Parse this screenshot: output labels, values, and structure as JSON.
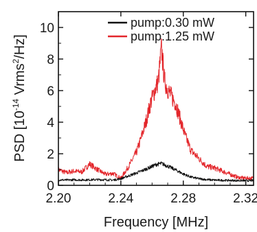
{
  "chart_data": {
    "type": "line",
    "xlabel": "Frequency [MHz]",
    "ylabel": {
      "prefix": "PSD  [10",
      "exp1": "-14",
      "middle": " Vrms",
      "exp2": "2",
      "suffix": "/Hz]"
    },
    "xlim": [
      2.2,
      2.325
    ],
    "ylim": [
      0,
      11
    ],
    "xticks": [
      2.2,
      2.24,
      2.28,
      2.32
    ],
    "xtick_labels": [
      "2.20",
      "2.24",
      "2.28",
      "2.32"
    ],
    "yticks": [
      0,
      2,
      4,
      6,
      8,
      10
    ],
    "ytick_labels": [
      "0",
      "2",
      "4",
      "6",
      "8",
      "10"
    ],
    "legend_position": "top-right",
    "grid": false,
    "series": [
      {
        "name": "pump:0.30 mW",
        "color": "#111111",
        "x": [
          2.2,
          2.205,
          2.21,
          2.215,
          2.22,
          2.225,
          2.23,
          2.235,
          2.24,
          2.245,
          2.25,
          2.255,
          2.26,
          2.263,
          2.266,
          2.27,
          2.275,
          2.28,
          2.285,
          2.29,
          2.295,
          2.3,
          2.305,
          2.31,
          2.315,
          2.32,
          2.325
        ],
        "y": [
          0.35,
          0.33,
          0.35,
          0.34,
          0.35,
          0.36,
          0.35,
          0.33,
          0.42,
          0.6,
          0.78,
          0.98,
          1.2,
          1.33,
          1.38,
          1.22,
          0.98,
          0.72,
          0.52,
          0.42,
          0.36,
          0.33,
          0.32,
          0.31,
          0.3,
          0.3,
          0.3
        ]
      },
      {
        "name": "pump:1.25 mW",
        "color": "#e3262b",
        "x": [
          2.2,
          2.205,
          2.21,
          2.215,
          2.22,
          2.225,
          2.23,
          2.235,
          2.24,
          2.245,
          2.25,
          2.253,
          2.256,
          2.259,
          2.262,
          2.264,
          2.266,
          2.268,
          2.27,
          2.272,
          2.275,
          2.278,
          2.281,
          2.285,
          2.29,
          2.295,
          2.3,
          2.305,
          2.31,
          2.315,
          2.32,
          2.325
        ],
        "y": [
          1.0,
          0.8,
          0.9,
          0.85,
          1.35,
          1.0,
          0.7,
          0.75,
          0.45,
          1.2,
          2.1,
          3.0,
          4.0,
          5.2,
          6.1,
          6.6,
          8.7,
          6.6,
          6.1,
          5.7,
          5.2,
          4.2,
          3.2,
          2.2,
          1.7,
          1.2,
          1.1,
          0.9,
          0.7,
          0.5,
          0.45,
          0.45
        ]
      }
    ]
  }
}
